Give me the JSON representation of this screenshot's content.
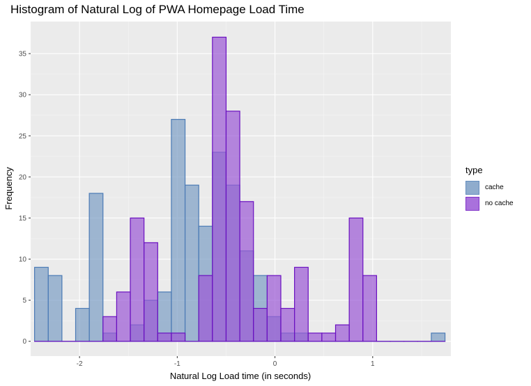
{
  "chart_data": {
    "type": "histogram",
    "title": "Histogram of Natural Log of PWA Homepage Load Time",
    "xlabel": "Natural Log Load time (in seconds)",
    "ylabel": "Frequency",
    "xlim": [
      -2.5,
      1.8
    ],
    "ylim": [
      -1.8,
      38.9
    ],
    "x_ticks": [
      -2,
      -1,
      0,
      1
    ],
    "x_tick_labels": [
      "-2",
      "-1",
      "0",
      "1"
    ],
    "y_ticks": [
      0,
      5,
      10,
      15,
      20,
      25,
      30,
      35
    ],
    "y_tick_labels": [
      "0",
      "5",
      "10",
      "15",
      "20",
      "25",
      "30",
      "35"
    ],
    "bin_width": 0.14,
    "bin_starts": [
      -2.46,
      -2.32,
      -2.18,
      -2.04,
      -1.9,
      -1.76,
      -1.62,
      -1.48,
      -1.34,
      -1.2,
      -1.06,
      -0.92,
      -0.78,
      -0.64,
      -0.5,
      -0.36,
      -0.22,
      -0.08,
      0.06,
      0.2,
      0.34,
      0.48,
      0.62,
      0.76,
      0.9,
      1.04,
      1.18,
      1.32,
      1.46,
      1.6
    ],
    "series": [
      {
        "name": "cache",
        "fill": "#7c9ec5",
        "stroke": "#4a7ab5",
        "values": [
          9,
          8,
          0,
          4,
          18,
          1,
          0,
          2,
          5,
          6,
          27,
          19,
          14,
          23,
          19,
          11,
          8,
          3,
          1,
          1,
          0,
          0,
          0,
          0,
          0,
          0,
          0,
          0,
          0,
          1
        ]
      },
      {
        "name": "no cache",
        "fill": "#9b59d6",
        "stroke": "#6a10c0",
        "values": [
          0,
          0,
          0,
          0,
          0,
          3,
          6,
          15,
          12,
          1,
          1,
          0,
          8,
          37,
          28,
          17,
          4,
          8,
          4,
          9,
          1,
          1,
          2,
          15,
          8,
          0,
          0,
          0,
          0,
          0
        ]
      }
    ],
    "legend": {
      "title": "type",
      "position": "right"
    },
    "grid": true,
    "panel_background": "#ebebeb"
  }
}
